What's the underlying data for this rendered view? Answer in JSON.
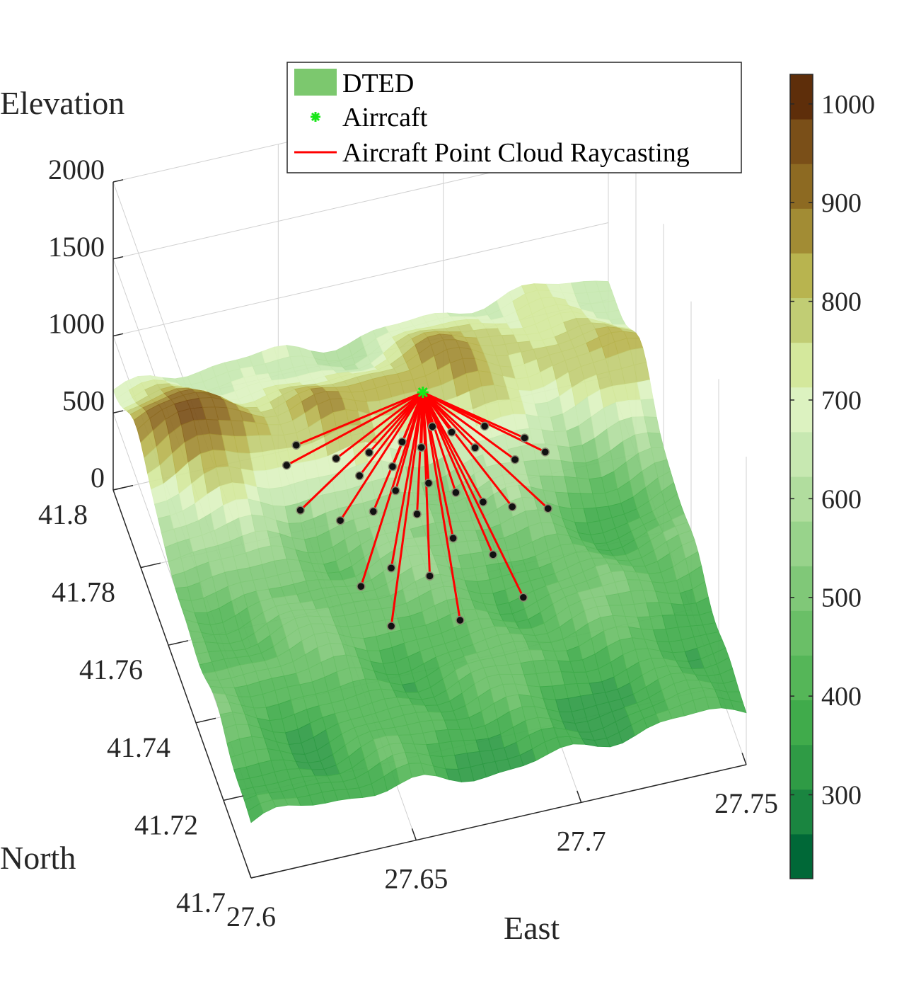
{
  "chart_data": {
    "type": "surface3d",
    "axes": {
      "xlabel": "East",
      "ylabel": "North",
      "zlabel": "Elevation",
      "x_ticks": [
        "27.6",
        "27.65",
        "27.7",
        "27.75"
      ],
      "y_ticks": [
        "41.7",
        "41.72",
        "41.74",
        "41.76",
        "41.78",
        "41.8"
      ],
      "z_ticks": [
        "0",
        "500",
        "1000",
        "1500",
        "2000"
      ],
      "xlim": [
        27.6,
        27.75
      ],
      "ylim": [
        41.7,
        41.8
      ],
      "zlim": [
        0,
        2000
      ],
      "grid": true
    },
    "legend": {
      "location": "top",
      "entries": [
        {
          "label": "DTED",
          "kind": "patch",
          "color": "#7cc86e"
        },
        {
          "label": "Airrcaft",
          "kind": "marker",
          "color": "#19e619"
        },
        {
          "label": "Aircraft Point Cloud Raycasting",
          "kind": "line",
          "color": "#ff0000"
        }
      ]
    },
    "colorbar": {
      "range": [
        215,
        1030
      ],
      "ticks": [
        "300",
        "400",
        "500",
        "600",
        "700",
        "800",
        "900",
        "1000"
      ],
      "tick_values": [
        300,
        400,
        500,
        600,
        700,
        800,
        900,
        1000
      ],
      "levels": 16,
      "colors": [
        "#006837",
        "#1a8540",
        "#2f9b45",
        "#40ab4b",
        "#55b658",
        "#6abf67",
        "#80c878",
        "#98d38b",
        "#b1dd9e",
        "#c7e8b1",
        "#dcf2c0",
        "#d4e89c",
        "#c1cd74",
        "#b8b44f",
        "#a28c34",
        "#8d6a22",
        "#7a4f18",
        "#5e2e0a"
      ]
    },
    "aircraft": {
      "east": 27.675,
      "north": 41.755,
      "elevation": 1400
    },
    "ray_hits": [
      {
        "east": 27.64,
        "north": 41.77,
        "elevation": 720
      },
      {
        "east": 27.645,
        "north": 41.775,
        "elevation": 700
      },
      {
        "east": 27.655,
        "north": 41.77,
        "elevation": 690
      },
      {
        "east": 27.66,
        "north": 41.765,
        "elevation": 680
      },
      {
        "east": 27.665,
        "north": 41.77,
        "elevation": 680
      },
      {
        "east": 27.67,
        "north": 41.765,
        "elevation": 690
      },
      {
        "east": 27.675,
        "north": 41.77,
        "elevation": 700
      },
      {
        "east": 27.68,
        "north": 41.768,
        "elevation": 690
      },
      {
        "east": 27.685,
        "north": 41.772,
        "elevation": 700
      },
      {
        "east": 27.69,
        "north": 41.77,
        "elevation": 690
      },
      {
        "east": 27.695,
        "north": 41.765,
        "elevation": 690
      },
      {
        "east": 27.7,
        "north": 41.77,
        "elevation": 680
      },
      {
        "east": 27.705,
        "north": 41.76,
        "elevation": 690
      },
      {
        "east": 27.71,
        "north": 41.765,
        "elevation": 680
      },
      {
        "east": 27.715,
        "north": 41.762,
        "elevation": 640
      },
      {
        "east": 27.64,
        "north": 41.76,
        "elevation": 680
      },
      {
        "east": 27.65,
        "north": 41.755,
        "elevation": 690
      },
      {
        "east": 27.66,
        "north": 41.755,
        "elevation": 700
      },
      {
        "east": 27.668,
        "north": 41.758,
        "elevation": 720
      },
      {
        "east": 27.672,
        "north": 41.752,
        "elevation": 700
      },
      {
        "east": 27.678,
        "north": 41.758,
        "elevation": 720
      },
      {
        "east": 27.685,
        "north": 41.755,
        "elevation": 700
      },
      {
        "east": 27.692,
        "north": 41.752,
        "elevation": 680
      },
      {
        "east": 27.7,
        "north": 41.75,
        "elevation": 660
      },
      {
        "east": 27.71,
        "north": 41.748,
        "elevation": 650
      },
      {
        "east": 27.65,
        "north": 41.74,
        "elevation": 640
      },
      {
        "east": 27.66,
        "north": 41.742,
        "elevation": 660
      },
      {
        "east": 27.67,
        "north": 41.738,
        "elevation": 660
      },
      {
        "east": 27.69,
        "north": 41.74,
        "elevation": 650
      },
      {
        "east": 27.655,
        "north": 41.73,
        "elevation": 610
      },
      {
        "east": 27.675,
        "north": 41.728,
        "elevation": 600
      },
      {
        "east": 27.695,
        "north": 41.73,
        "elevation": 600
      },
      {
        "east": 27.68,
        "north": 41.745,
        "elevation": 680
      }
    ]
  }
}
